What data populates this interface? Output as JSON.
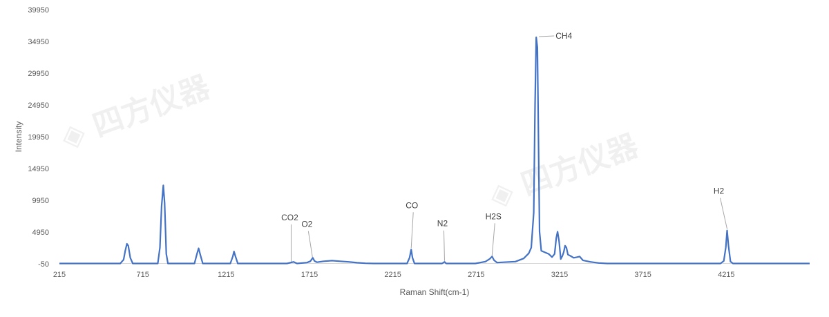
{
  "chart_data": {
    "type": "line",
    "title": "",
    "xlabel": "Raman Shift(cm-1)",
    "ylabel": "Intensity",
    "xlim": [
      215,
      4715
    ],
    "ylim": [
      -50,
      39950
    ],
    "x_ticks": [
      215,
      715,
      1215,
      1715,
      2215,
      2715,
      3215,
      3715,
      4215
    ],
    "y_ticks": [
      -50,
      4950,
      9950,
      14950,
      19950,
      24950,
      29950,
      34950,
      39950
    ],
    "grid": false,
    "legend": "none",
    "line_color": "#4472C4",
    "watermark": "四方仪器",
    "series": [
      {
        "points": [
          [
            215,
            0
          ],
          [
            580,
            0
          ],
          [
            600,
            600
          ],
          [
            610,
            2000
          ],
          [
            620,
            3100
          ],
          [
            628,
            2800
          ],
          [
            640,
            900
          ],
          [
            655,
            0
          ],
          [
            805,
            0
          ],
          [
            818,
            2500
          ],
          [
            828,
            9000
          ],
          [
            838,
            12300
          ],
          [
            846,
            9500
          ],
          [
            856,
            1500
          ],
          [
            866,
            0
          ],
          [
            1025,
            0
          ],
          [
            1040,
            1500
          ],
          [
            1050,
            2400
          ],
          [
            1060,
            1400
          ],
          [
            1075,
            0
          ],
          [
            1240,
            0
          ],
          [
            1255,
            1100
          ],
          [
            1262,
            1900
          ],
          [
            1270,
            1200
          ],
          [
            1285,
            0
          ],
          [
            1580,
            0
          ],
          [
            1620,
            250
          ],
          [
            1640,
            0
          ],
          [
            1700,
            150
          ],
          [
            1720,
            350
          ],
          [
            1735,
            900
          ],
          [
            1745,
            400
          ],
          [
            1760,
            200
          ],
          [
            1800,
            350
          ],
          [
            1850,
            450
          ],
          [
            1900,
            350
          ],
          [
            1950,
            250
          ],
          [
            2000,
            120
          ],
          [
            2050,
            40
          ],
          [
            2100,
            0
          ],
          [
            2300,
            0
          ],
          [
            2315,
            900
          ],
          [
            2325,
            2200
          ],
          [
            2333,
            900
          ],
          [
            2345,
            0
          ],
          [
            2510,
            0
          ],
          [
            2525,
            250
          ],
          [
            2535,
            0
          ],
          [
            2710,
            0
          ],
          [
            2770,
            300
          ],
          [
            2795,
            700
          ],
          [
            2810,
            1100
          ],
          [
            2822,
            500
          ],
          [
            2840,
            150
          ],
          [
            2950,
            300
          ],
          [
            3000,
            800
          ],
          [
            3030,
            1600
          ],
          [
            3045,
            2500
          ],
          [
            3060,
            8000
          ],
          [
            3068,
            25000
          ],
          [
            3075,
            35600
          ],
          [
            3082,
            34000
          ],
          [
            3088,
            20000
          ],
          [
            3095,
            5000
          ],
          [
            3105,
            2000
          ],
          [
            3150,
            1500
          ],
          [
            3170,
            1000
          ],
          [
            3185,
            1500
          ],
          [
            3195,
            4000
          ],
          [
            3203,
            5000
          ],
          [
            3212,
            3500
          ],
          [
            3222,
            700
          ],
          [
            3232,
            1200
          ],
          [
            3240,
            1800
          ],
          [
            3248,
            2800
          ],
          [
            3256,
            2500
          ],
          [
            3265,
            1400
          ],
          [
            3280,
            1200
          ],
          [
            3300,
            900
          ],
          [
            3320,
            1000
          ],
          [
            3335,
            1100
          ],
          [
            3355,
            500
          ],
          [
            3400,
            250
          ],
          [
            3450,
            80
          ],
          [
            3500,
            0
          ],
          [
            4180,
            0
          ],
          [
            4200,
            400
          ],
          [
            4212,
            2500
          ],
          [
            4220,
            5200
          ],
          [
            4228,
            2800
          ],
          [
            4240,
            300
          ],
          [
            4255,
            0
          ],
          [
            4715,
            0
          ]
        ]
      }
    ],
    "annotations": [
      {
        "text": "CO2",
        "x": 1605,
        "y": 60
      },
      {
        "text": "O2",
        "x": 1733,
        "y": 750
      },
      {
        "text": "CO",
        "x": 2325,
        "y": 2200
      },
      {
        "text": "N2",
        "x": 2525,
        "y": 200
      },
      {
        "text": "H2S",
        "x": 2810,
        "y": 1000
      },
      {
        "text": "CH4",
        "x": 3075,
        "y": 35600
      },
      {
        "text": "H2",
        "x": 4220,
        "y": 5200
      }
    ]
  }
}
